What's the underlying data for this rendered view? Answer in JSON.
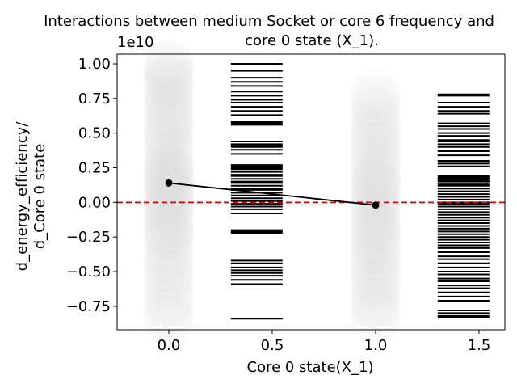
{
  "chart_data": {
    "type": "scatter",
    "title_lines": [
      "Interactions between medium Socket or core 6 frequency and",
      "core 0 state (X_1)."
    ],
    "xlabel": "Core 0 state(X_1)",
    "ylabel_lines": [
      "d_energy_efficiency/",
      "d_Core 0 state"
    ],
    "y_offset_label": "1e10",
    "xlim": [
      -0.25,
      1.625
    ],
    "ylim": [
      -0.92,
      1.07
    ],
    "x_ticks": [
      0.0,
      0.5,
      1.0,
      1.5
    ],
    "x_tick_labels": [
      "0.0",
      "0.5",
      "1.0",
      "1.5"
    ],
    "y_ticks": [
      -0.75,
      -0.5,
      -0.25,
      0.0,
      0.25,
      0.5,
      0.75,
      1.0
    ],
    "y_tick_labels": [
      "−0.75",
      "−0.50",
      "−0.25",
      "0.00",
      "0.25",
      "0.50",
      "0.75",
      "1.00"
    ],
    "reference_line": {
      "y": 0.0,
      "color": "#dd0000",
      "style": "dashed"
    },
    "mean_line": {
      "x": [
        0.0,
        1.0
      ],
      "y": [
        0.14,
        -0.02
      ],
      "color": "#000000"
    },
    "scatter_groups": [
      {
        "x": 0.0,
        "color": "#cccccc",
        "y": [
          1.0,
          0.96,
          0.92,
          0.88,
          0.85,
          0.8,
          0.75,
          0.7,
          0.65,
          0.6,
          0.57,
          0.52,
          0.47,
          0.42,
          0.38,
          0.33,
          0.28,
          0.25,
          0.22,
          0.19,
          0.16,
          0.13,
          0.1,
          0.07,
          0.04,
          0.0,
          -0.03,
          -0.06,
          -0.1,
          -0.15,
          -0.2,
          -0.22,
          -0.25,
          -0.3,
          -0.36,
          -0.42,
          -0.47,
          -0.52,
          -0.58,
          -0.65,
          -0.72,
          -0.8,
          -0.86
        ]
      },
      {
        "x": 1.0,
        "color": "#cccccc",
        "y": [
          0.78,
          0.72,
          0.66,
          0.6,
          0.55,
          0.5,
          0.45,
          0.4,
          0.35,
          0.3,
          0.25,
          0.2,
          0.16,
          0.13,
          0.1,
          0.06,
          0.02,
          -0.02,
          -0.06,
          -0.1,
          -0.14,
          -0.18,
          -0.22,
          -0.26,
          -0.3,
          -0.35,
          -0.4,
          -0.45,
          -0.5,
          -0.55,
          -0.6,
          -0.66,
          -0.72,
          -0.78,
          -0.83
        ]
      }
    ],
    "rug_groups": [
      {
        "x_range": [
          0.3,
          0.55
        ],
        "y": [
          1.0,
          0.95,
          0.9,
          0.87,
          0.84,
          0.8,
          0.77,
          0.74,
          0.72,
          0.69,
          0.66,
          0.63,
          0.58,
          0.57,
          0.56,
          0.44,
          0.42,
          0.41,
          0.4,
          0.38,
          0.35,
          0.27,
          0.26,
          0.25,
          0.24,
          0.22,
          0.2,
          0.19,
          0.17,
          0.15,
          0.14,
          0.12,
          0.1,
          0.09,
          0.07,
          0.05,
          0.03,
          0.01,
          -0.01,
          -0.03,
          -0.05,
          -0.08,
          -0.2,
          -0.21,
          -0.22,
          -0.42,
          -0.44,
          -0.47,
          -0.49,
          -0.51,
          -0.53,
          -0.56,
          -0.59,
          -0.84
        ]
      },
      {
        "x_range": [
          1.3,
          1.55
        ],
        "y": [
          0.78,
          0.77,
          0.72,
          0.69,
          0.66,
          0.64,
          0.57,
          0.55,
          0.53,
          0.5,
          0.48,
          0.45,
          0.44,
          0.42,
          0.4,
          0.37,
          0.34,
          0.3,
          0.28,
          0.26,
          0.19,
          0.18,
          0.17,
          0.16,
          0.15,
          0.13,
          0.12,
          0.1,
          0.08,
          0.06,
          0.04,
          0.02,
          0.0,
          -0.01,
          -0.03,
          -0.05,
          -0.07,
          -0.09,
          -0.11,
          -0.13,
          -0.15,
          -0.17,
          -0.19,
          -0.21,
          -0.23,
          -0.25,
          -0.27,
          -0.29,
          -0.31,
          -0.33,
          -0.36,
          -0.39,
          -0.41,
          -0.44,
          -0.47,
          -0.5,
          -0.52,
          -0.55,
          -0.57,
          -0.6,
          -0.62,
          -0.65,
          -0.68,
          -0.71,
          -0.78,
          -0.8,
          -0.82,
          -0.83
        ]
      }
    ]
  }
}
